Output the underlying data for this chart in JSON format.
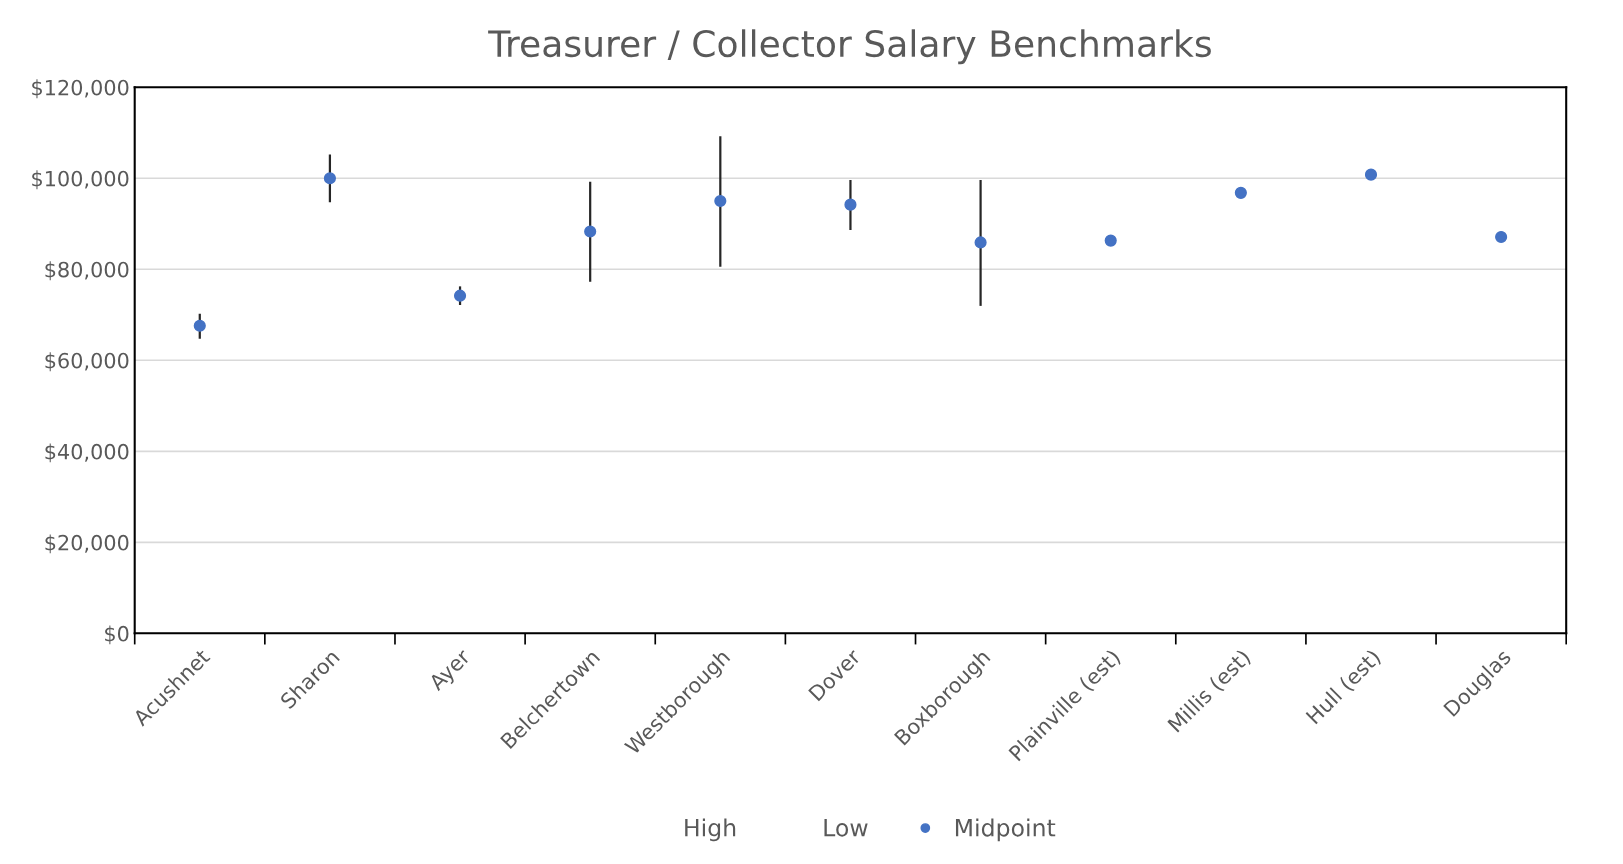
{
  "chart_data": {
    "type": "scatter",
    "title": "Treasurer / Collector Salary Benchmarks",
    "categories": [
      "Acushnet",
      "Sharon",
      "Ayer",
      "Belchertown",
      "Westborough",
      "Dover",
      "Boxborough",
      "Plainville (est)",
      "Millis (est)",
      "Hull (est)",
      "Douglas"
    ],
    "series": [
      {
        "name": "Midpoint",
        "color": "#4472c4",
        "values": [
          67600,
          100000,
          74200,
          88300,
          95000,
          94200,
          85900,
          86300,
          96800,
          100800,
          87100
        ],
        "errors": [
          [
            65000,
            70000
          ],
          [
            95000,
            105000
          ],
          [
            72400,
            76000
          ],
          [
            77500,
            99000
          ],
          [
            80800,
            109000
          ],
          [
            88900,
            99400
          ],
          [
            72200,
            99400
          ],
          null,
          null,
          null,
          null
        ]
      }
    ],
    "annotations": [
      "High",
      "Low"
    ],
    "marker": "circle",
    "ylim": [
      0,
      120000
    ],
    "yticks": [
      {
        "value": 0,
        "label": "$0"
      },
      {
        "value": 20000,
        "label": "$20,000"
      },
      {
        "value": 40000,
        "label": "$40,000"
      },
      {
        "value": 60000,
        "label": "$60,000"
      },
      {
        "value": 80000,
        "label": "$80,000"
      },
      {
        "value": 100000,
        "label": "$100,000"
      },
      {
        "value": 120000,
        "label": "$120,000"
      }
    ],
    "grid": "y",
    "legend": "bottom"
  }
}
